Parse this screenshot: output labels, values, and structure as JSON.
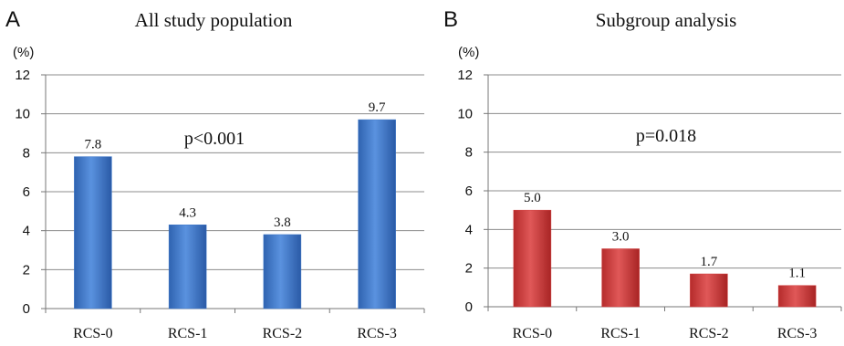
{
  "chart_data": [
    {
      "type": "bar",
      "panel": "A",
      "title": "All study population",
      "ylabel": "(%)",
      "ylim": [
        0,
        12
      ],
      "yticks": [
        0,
        2,
        4,
        6,
        8,
        10,
        12
      ],
      "categories": [
        "RCS-0",
        "RCS-1",
        "RCS-2",
        "RCS-3"
      ],
      "values": [
        7.8,
        4.3,
        3.8,
        9.7
      ],
      "value_labels": [
        "7.8",
        "4.3",
        "3.8",
        "9.7"
      ],
      "annotation": "p<0.001",
      "bar_color": "#3b76c9",
      "grid": true
    },
    {
      "type": "bar",
      "panel": "B",
      "title": "Subgroup analysis",
      "ylabel": "(%)",
      "ylim": [
        0,
        12
      ],
      "yticks": [
        0,
        2,
        4,
        6,
        8,
        10,
        12
      ],
      "categories": [
        "RCS-0",
        "RCS-1",
        "RCS-2",
        "RCS-3"
      ],
      "values": [
        5.0,
        3.0,
        1.7,
        1.1
      ],
      "value_labels": [
        "5.0",
        "3.0",
        "1.7",
        "1.1"
      ],
      "annotation": "p=0.018",
      "bar_color": "#d03a3a",
      "grid": true
    }
  ]
}
